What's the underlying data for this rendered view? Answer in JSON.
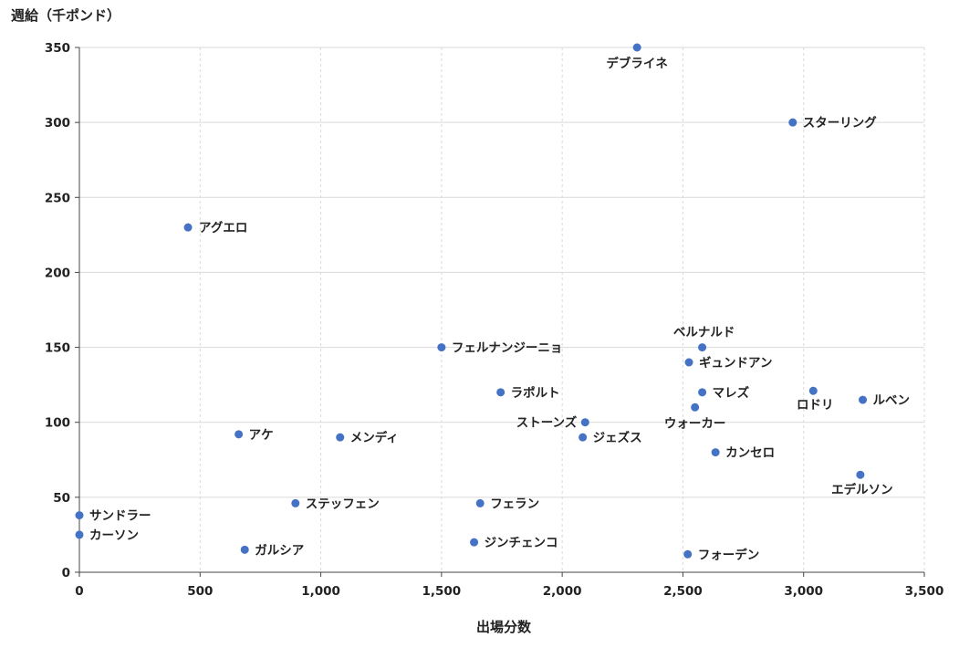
{
  "chart_data": {
    "type": "scatter",
    "title": "",
    "xlabel": "出場分数",
    "ylabel": "週給（千ポンド）",
    "xlim": [
      0,
      3500
    ],
    "ylim": [
      0,
      350
    ],
    "x_ticks": [
      0,
      500,
      1000,
      1500,
      2000,
      2500,
      3000,
      3500
    ],
    "y_ticks": [
      0,
      50,
      100,
      150,
      200,
      250,
      300,
      350
    ],
    "x_tick_labels": [
      "0",
      "500",
      "1,000",
      "1,500",
      "2,000",
      "2,500",
      "3,000",
      "3,500"
    ],
    "y_tick_labels": [
      "0",
      "50",
      "100",
      "150",
      "200",
      "250",
      "300",
      "350"
    ],
    "grid": true,
    "marker_color": "#4472c4",
    "points": [
      {
        "label": "デブライネ",
        "x": 2310,
        "y": 350
      },
      {
        "label": "スターリング",
        "x": 2955,
        "y": 300
      },
      {
        "label": "アグエロ",
        "x": 450,
        "y": 230
      },
      {
        "label": "フェルナンジーニョ",
        "x": 1500,
        "y": 150
      },
      {
        "label": "ベルナルド",
        "x": 2580,
        "y": 150
      },
      {
        "label": "ギュンドアン",
        "x": 2525,
        "y": 140
      },
      {
        "label": "ラポルト",
        "x": 1745,
        "y": 120
      },
      {
        "label": "マレズ",
        "x": 2580,
        "y": 120
      },
      {
        "label": "ロドリ",
        "x": 3040,
        "y": 121
      },
      {
        "label": "ルベン",
        "x": 3245,
        "y": 115
      },
      {
        "label": "ウォーカー",
        "x": 2550,
        "y": 110
      },
      {
        "label": "ストーンズ",
        "x": 2095,
        "y": 100
      },
      {
        "label": "アケ",
        "x": 660,
        "y": 92
      },
      {
        "label": "メンディ",
        "x": 1080,
        "y": 90
      },
      {
        "label": "ジェズス",
        "x": 2085,
        "y": 90
      },
      {
        "label": "カンセロ",
        "x": 2635,
        "y": 80
      },
      {
        "label": "エデルソン",
        "x": 3235,
        "y": 65
      },
      {
        "label": "ステッフェン",
        "x": 895,
        "y": 46
      },
      {
        "label": "フェラン",
        "x": 1660,
        "y": 46
      },
      {
        "label": "サンドラー",
        "x": 0,
        "y": 38
      },
      {
        "label": "カーソン",
        "x": 0,
        "y": 25
      },
      {
        "label": "ジンチェンコ",
        "x": 1635,
        "y": 20
      },
      {
        "label": "ガルシア",
        "x": 685,
        "y": 15
      },
      {
        "label": "フォーデン",
        "x": 2520,
        "y": 12
      }
    ]
  }
}
